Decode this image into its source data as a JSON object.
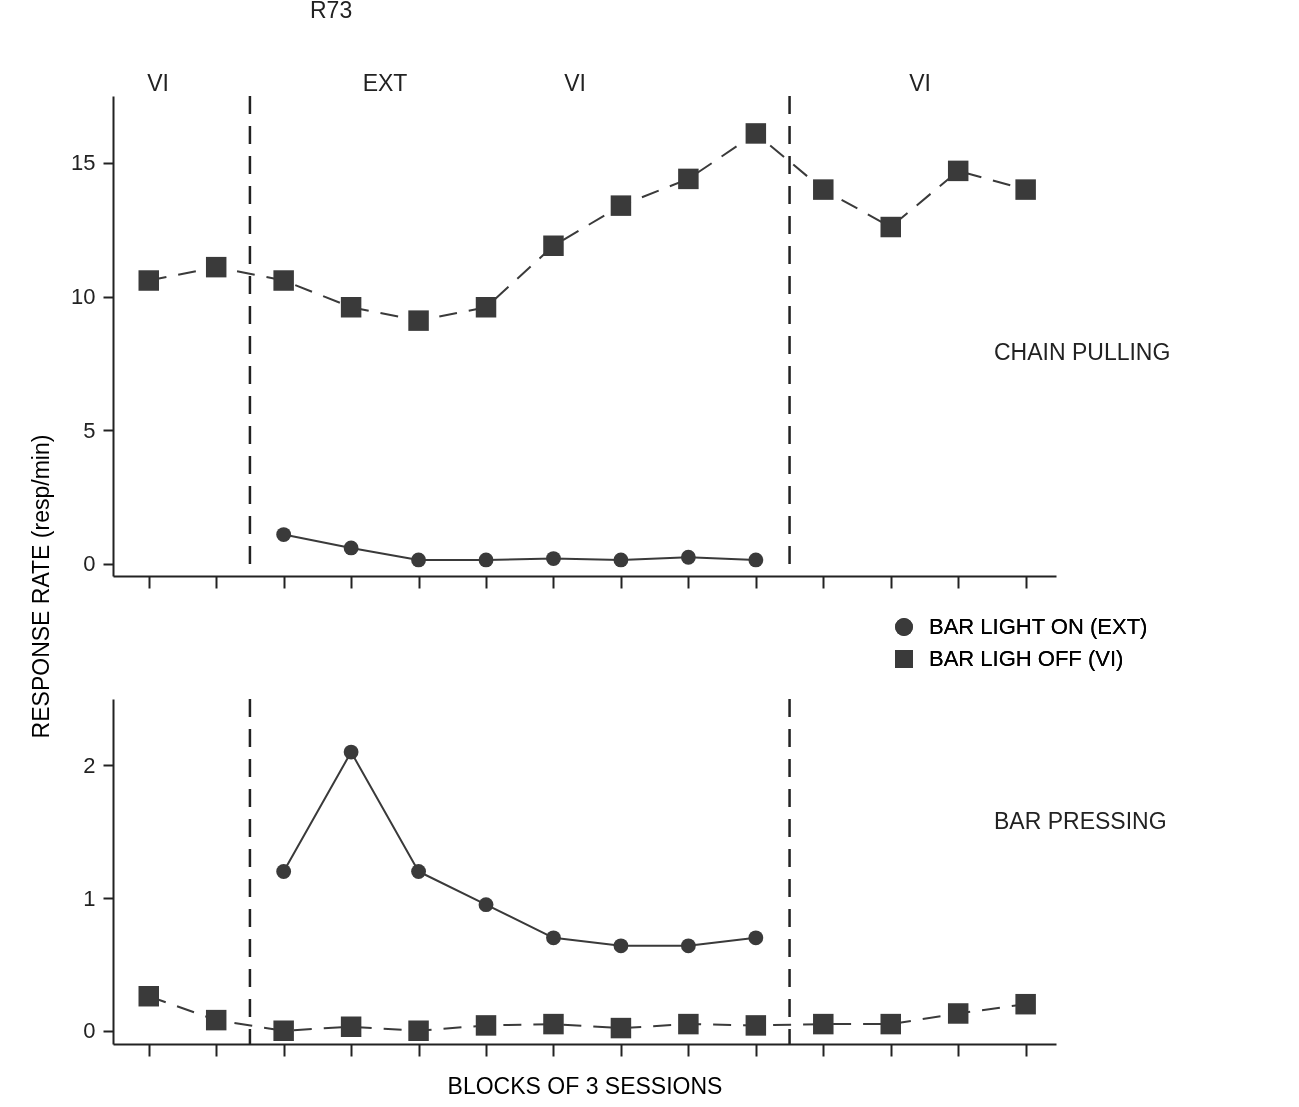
{
  "chart_data": [
    {
      "type": "line",
      "title": "R73",
      "ylabel": "RESPONSE RATE (resp/min)",
      "categories": [
        null,
        null,
        null,
        null,
        null,
        null,
        null,
        null,
        null,
        null,
        null,
        null,
        null,
        null
      ],
      "series": [
        {
          "name": "BAR LIGHT ON (EXT)",
          "color": "#3a3a3a",
          "marker": "circle",
          "line_style": "solid",
          "values": [
            null,
            null,
            1.1,
            0.6,
            0.15,
            0.15,
            0.2,
            0.15,
            0.25,
            0.15,
            null,
            null,
            null,
            null
          ]
        },
        {
          "name": "BAR LIGH OFF (VI)",
          "color": "#3a3a3a",
          "marker": "square",
          "line_style": "dashed",
          "values": [
            10.6,
            11.1,
            10.6,
            9.6,
            9.1,
            9.6,
            11.9,
            13.4,
            14.4,
            16.1,
            14.0,
            12.6,
            14.7,
            14.0
          ]
        }
      ],
      "ylim": [
        -0.45,
        17.5
      ],
      "yticks": [
        0,
        5,
        10,
        15
      ],
      "grid": false,
      "legend": "bottom right",
      "annotations": [
        "VI",
        "EXT",
        "VI",
        "VI",
        "CHAIN PULLING"
      ]
    },
    {
      "type": "line",
      "xlabel": "BLOCKS OF 3 SESSIONS",
      "categories": [
        null,
        null,
        null,
        null,
        null,
        null,
        null,
        null,
        null,
        null,
        null,
        null,
        null,
        null
      ],
      "series": [
        {
          "color": "#3a3a3a",
          "marker": "circle",
          "line_style": "solid",
          "values": [
            null,
            null,
            1.2,
            2.1,
            1.2,
            0.95,
            0.7,
            0.64,
            0.64,
            0.7,
            null,
            null,
            null,
            null
          ]
        },
        {
          "color": "#3a3a3a",
          "marker": "square",
          "line_style": "dashed",
          "values": [
            0.26,
            0.08,
            0.0,
            0.03,
            0.0,
            0.04,
            0.05,
            0.02,
            0.05,
            0.04,
            0.05,
            0.05,
            0.13,
            0.2
          ]
        }
      ],
      "ylim": [
        -0.1,
        2.5
      ],
      "yticks": [
        0,
        1,
        2
      ],
      "grid": false,
      "annotations": [
        "BAR PRESSING"
      ]
    }
  ]
}
